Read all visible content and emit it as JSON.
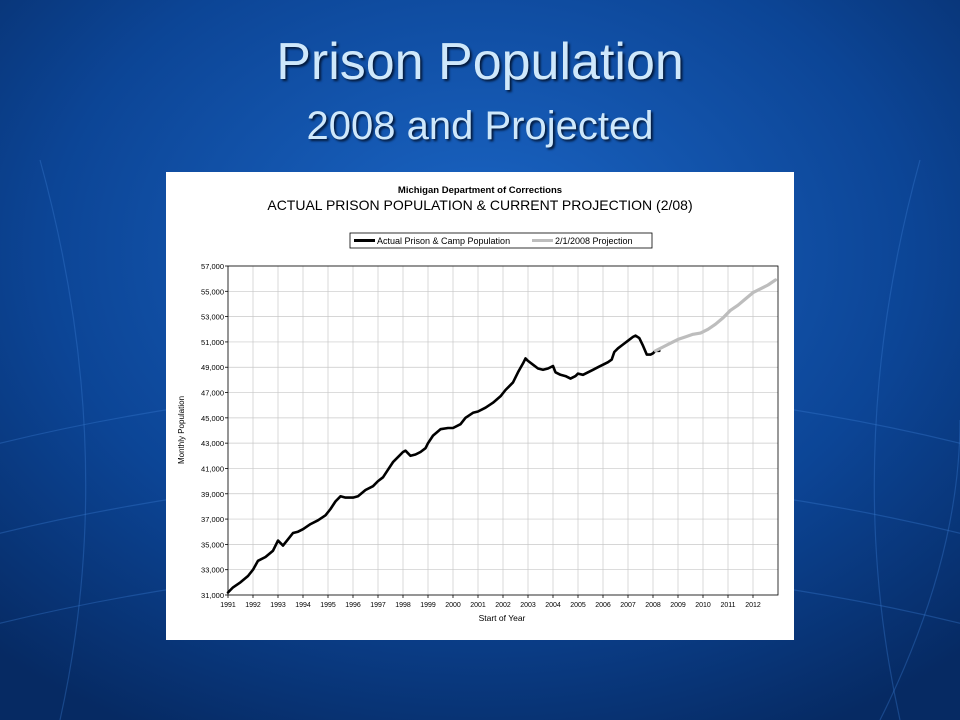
{
  "slide": {
    "title": "Prison Population",
    "subtitle": "2008 and Projected"
  },
  "colors": {
    "background": "#0a3f8a",
    "title_text": "#cfe8fb",
    "actual_line": "#000000",
    "projection_line": "#bdbdbd"
  },
  "chart_data": {
    "type": "line",
    "suptitle": "Michigan Department of Corrections",
    "title": "ACTUAL PRISON POPULATION & CURRENT PROJECTION (2/08)",
    "xlabel": "Start of Year",
    "ylabel": "Monthly Population",
    "xlim": [
      1991,
      2013
    ],
    "ylim": [
      31000,
      57000
    ],
    "grid": true,
    "legend_position": "top",
    "x_tick_labels": [
      "1991",
      "1992",
      "1993",
      "1994",
      "1995",
      "1996",
      "1997",
      "1998",
      "1999",
      "2000",
      "2001",
      "2002",
      "2003",
      "2004",
      "2005",
      "2006",
      "2007",
      "2008",
      "2009",
      "2010",
      "2011",
      "2012"
    ],
    "y_tick_labels": [
      "31,000",
      "33,000",
      "35,000",
      "37,000",
      "39,000",
      "41,000",
      "43,000",
      "45,000",
      "47,000",
      "49,000",
      "51,000",
      "53,000",
      "55,000",
      "57,000"
    ],
    "series": [
      {
        "name": "Actual Prison & Camp Population",
        "color": "#000000",
        "points": [
          [
            1991.0,
            31200
          ],
          [
            1991.2,
            31600
          ],
          [
            1991.5,
            32000
          ],
          [
            1991.8,
            32500
          ],
          [
            1992.0,
            33000
          ],
          [
            1992.2,
            33700
          ],
          [
            1992.5,
            34000
          ],
          [
            1992.8,
            34500
          ],
          [
            1993.0,
            35300
          ],
          [
            1993.2,
            34900
          ],
          [
            1993.4,
            35400
          ],
          [
            1993.6,
            35900
          ],
          [
            1993.8,
            36000
          ],
          [
            1994.0,
            36200
          ],
          [
            1994.3,
            36600
          ],
          [
            1994.6,
            36900
          ],
          [
            1994.9,
            37300
          ],
          [
            1995.1,
            37800
          ],
          [
            1995.3,
            38400
          ],
          [
            1995.5,
            38800
          ],
          [
            1995.7,
            38700
          ],
          [
            1996.0,
            38700
          ],
          [
            1996.2,
            38800
          ],
          [
            1996.5,
            39300
          ],
          [
            1996.8,
            39600
          ],
          [
            1997.0,
            40000
          ],
          [
            1997.2,
            40300
          ],
          [
            1997.4,
            40900
          ],
          [
            1997.6,
            41500
          ],
          [
            1997.8,
            41900
          ],
          [
            1998.0,
            42300
          ],
          [
            1998.1,
            42400
          ],
          [
            1998.3,
            42000
          ],
          [
            1998.5,
            42100
          ],
          [
            1998.7,
            42300
          ],
          [
            1998.9,
            42600
          ],
          [
            1999.0,
            43000
          ],
          [
            1999.2,
            43600
          ],
          [
            1999.5,
            44100
          ],
          [
            1999.8,
            44200
          ],
          [
            2000.0,
            44200
          ],
          [
            2000.3,
            44500
          ],
          [
            2000.5,
            45000
          ],
          [
            2000.8,
            45400
          ],
          [
            2001.0,
            45500
          ],
          [
            2001.3,
            45800
          ],
          [
            2001.6,
            46200
          ],
          [
            2001.9,
            46700
          ],
          [
            2002.1,
            47200
          ],
          [
            2002.4,
            47800
          ],
          [
            2002.6,
            48600
          ],
          [
            2002.8,
            49300
          ],
          [
            2002.9,
            49700
          ],
          [
            2003.0,
            49500
          ],
          [
            2003.2,
            49200
          ],
          [
            2003.4,
            48900
          ],
          [
            2003.6,
            48800
          ],
          [
            2003.8,
            48900
          ],
          [
            2004.0,
            49100
          ],
          [
            2004.1,
            48600
          ],
          [
            2004.3,
            48400
          ],
          [
            2004.5,
            48300
          ],
          [
            2004.7,
            48100
          ],
          [
            2004.9,
            48300
          ],
          [
            2005.0,
            48500
          ],
          [
            2005.2,
            48400
          ],
          [
            2005.4,
            48600
          ],
          [
            2005.6,
            48800
          ],
          [
            2005.8,
            49000
          ],
          [
            2006.0,
            49200
          ],
          [
            2006.2,
            49400
          ],
          [
            2006.35,
            49600
          ],
          [
            2006.45,
            50200
          ],
          [
            2006.6,
            50500
          ],
          [
            2006.8,
            50800
          ],
          [
            2007.0,
            51100
          ],
          [
            2007.2,
            51400
          ],
          [
            2007.3,
            51500
          ],
          [
            2007.45,
            51300
          ],
          [
            2007.6,
            50700
          ],
          [
            2007.75,
            50000
          ],
          [
            2007.9,
            50000
          ],
          [
            2008.0,
            50100
          ],
          [
            2008.1,
            50300
          ],
          [
            2008.25,
            50300
          ]
        ]
      },
      {
        "name": "2/1/2008 Projection",
        "color": "#bdbdbd",
        "points": [
          [
            2008.1,
            50300
          ],
          [
            2008.4,
            50600
          ],
          [
            2008.7,
            50900
          ],
          [
            2009.0,
            51200
          ],
          [
            2009.3,
            51400
          ],
          [
            2009.6,
            51600
          ],
          [
            2009.9,
            51700
          ],
          [
            2010.2,
            52000
          ],
          [
            2010.5,
            52400
          ],
          [
            2010.8,
            52900
          ],
          [
            2011.1,
            53500
          ],
          [
            2011.4,
            53900
          ],
          [
            2011.7,
            54400
          ],
          [
            2012.0,
            54900
          ],
          [
            2012.3,
            55200
          ],
          [
            2012.6,
            55500
          ],
          [
            2012.9,
            55900
          ]
        ]
      }
    ]
  }
}
